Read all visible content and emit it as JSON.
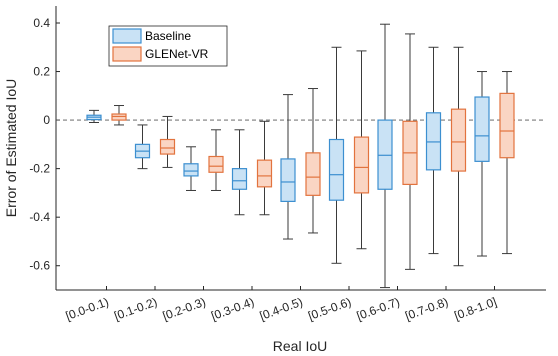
{
  "chart_data": {
    "type": "boxplot",
    "xlabel": "Real IoU",
    "ylabel": "Error of Estimated IoU",
    "ylim": [
      -0.7,
      0.47
    ],
    "yticks": [
      0.4,
      0.2,
      0,
      -0.2,
      -0.4,
      -0.6
    ],
    "ytick_labels": [
      "0.4",
      "0.2",
      "0",
      "-0.2",
      "-0.4",
      "-0.6"
    ],
    "categories": [
      "[0.0-0.1)",
      "[0.1-0.2)",
      "[0.2-0.3)",
      "[0.3-0.4)",
      "[0.4-0.5)",
      "[0.5-0.6)",
      "[0.6-0.7)",
      "[0.7-0.8)",
      "[0.8-1.0]"
    ],
    "reference_line": {
      "y": 0,
      "style": "dashed"
    },
    "grid": false,
    "legend_position": "top-left",
    "series": [
      {
        "name": "Baseline",
        "edge_color": "#3c8fd0",
        "fill_color": "#c9e2f5",
        "boxes": [
          {
            "min": -0.01,
            "q1": 0.002,
            "median": 0.012,
            "q3": 0.02,
            "max": 0.04
          },
          {
            "min": -0.2,
            "q1": -0.155,
            "median": -0.128,
            "q3": -0.1,
            "max": -0.02
          },
          {
            "min": -0.29,
            "q1": -0.23,
            "median": -0.21,
            "q3": -0.18,
            "max": -0.11
          },
          {
            "min": -0.39,
            "q1": -0.285,
            "median": -0.25,
            "q3": -0.2,
            "max": -0.04
          },
          {
            "min": -0.49,
            "q1": -0.335,
            "median": -0.255,
            "q3": -0.16,
            "max": 0.105
          },
          {
            "min": -0.59,
            "q1": -0.33,
            "median": -0.225,
            "q3": -0.08,
            "max": 0.3
          },
          {
            "min": -0.69,
            "q1": -0.285,
            "median": -0.145,
            "q3": 0.0,
            "max": 0.395
          },
          {
            "min": -0.55,
            "q1": -0.205,
            "median": -0.09,
            "q3": 0.03,
            "max": 0.3
          },
          {
            "min": -0.56,
            "q1": -0.17,
            "median": -0.065,
            "q3": 0.095,
            "max": 0.2
          }
        ]
      },
      {
        "name": "GLENet-VR",
        "edge_color": "#e2733e",
        "fill_color": "#fad5c3",
        "boxes": [
          {
            "min": -0.02,
            "q1": 0.0,
            "median": 0.015,
            "q3": 0.025,
            "max": 0.06
          },
          {
            "min": -0.195,
            "q1": -0.14,
            "median": -0.115,
            "q3": -0.08,
            "max": 0.015
          },
          {
            "min": -0.29,
            "q1": -0.215,
            "median": -0.19,
            "q3": -0.15,
            "max": -0.04
          },
          {
            "min": -0.39,
            "q1": -0.275,
            "median": -0.23,
            "q3": -0.165,
            "max": -0.005
          },
          {
            "min": -0.465,
            "q1": -0.31,
            "median": -0.235,
            "q3": -0.135,
            "max": 0.13
          },
          {
            "min": -0.53,
            "q1": -0.3,
            "median": -0.195,
            "q3": -0.07,
            "max": 0.285
          },
          {
            "min": -0.615,
            "q1": -0.265,
            "median": -0.135,
            "q3": -0.005,
            "max": 0.355
          },
          {
            "min": -0.6,
            "q1": -0.21,
            "median": -0.09,
            "q3": 0.045,
            "max": 0.3
          },
          {
            "min": -0.55,
            "q1": -0.155,
            "median": -0.045,
            "q3": 0.11,
            "max": 0.2
          }
        ]
      }
    ]
  }
}
